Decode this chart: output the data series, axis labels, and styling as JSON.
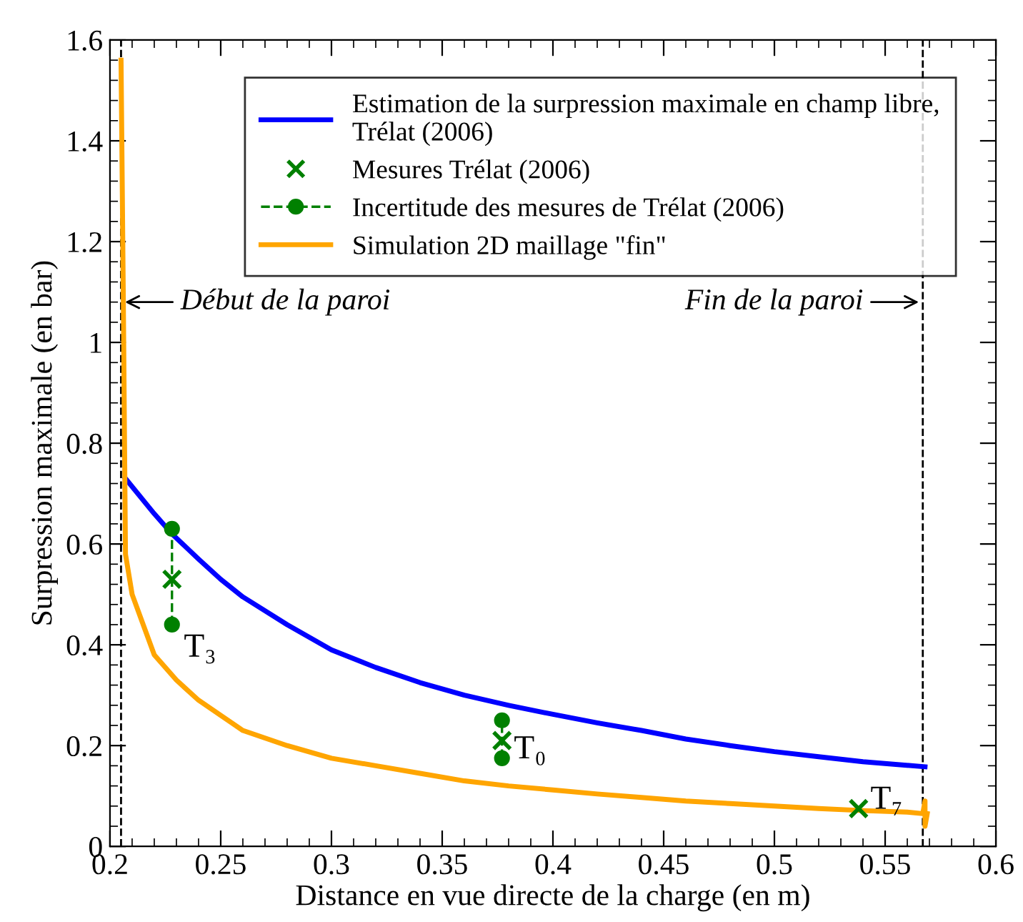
{
  "chart_data": {
    "type": "line",
    "xlabel": "Distance en vue directe de la charge (en m)",
    "ylabel": "Surpression maximale (en bar)",
    "xlim": [
      0.2,
      0.6
    ],
    "xticks": [
      0.2,
      0.25,
      0.3,
      0.35,
      0.4,
      0.45,
      0.5,
      0.55,
      0.6
    ],
    "ylim": [
      0,
      1.6
    ],
    "yticks": [
      0,
      0.2,
      0.4,
      0.6,
      0.8,
      1,
      1.2,
      1.4,
      1.6
    ],
    "grid": false,
    "legend": "top right",
    "series": [
      {
        "name": "Estimation de la surpression maximale en champ libre,\nTrélat (2006)",
        "color": "#0000ff",
        "x": [
          0.207,
          0.22,
          0.228,
          0.24,
          0.25,
          0.26,
          0.28,
          0.3,
          0.32,
          0.34,
          0.36,
          0.38,
          0.4,
          0.42,
          0.44,
          0.46,
          0.48,
          0.5,
          0.52,
          0.54,
          0.568
        ],
        "values": [
          0.73,
          0.66,
          0.62,
          0.57,
          0.53,
          0.495,
          0.44,
          0.39,
          0.355,
          0.325,
          0.3,
          0.28,
          0.262,
          0.245,
          0.23,
          0.213,
          0.2,
          0.188,
          0.178,
          0.168,
          0.158
        ]
      },
      {
        "name": "Mesures Trélat (2006)",
        "type": "scatter",
        "marker": "cross",
        "color": "#008000",
        "x": [
          0.228,
          0.377,
          0.538
        ],
        "values": [
          0.53,
          0.21,
          0.075
        ]
      },
      {
        "name": "Incertitude des mesures de Trélat (2006)",
        "marker": "circle",
        "line_style": "dashed",
        "color": "#008000",
        "x": [
          0.228,
          0.228
        ],
        "values": [
          0.44,
          0.63
        ]
      },
      {
        "marker": "circle",
        "line_style": "dashed",
        "color": "#008000",
        "x": [
          0.377,
          0.377
        ],
        "values": [
          0.175,
          0.25
        ]
      },
      {
        "name": "Simulation 2D maillage \"fin\"",
        "color": "#ffa500",
        "x": [
          0.205,
          0.206,
          0.207,
          0.21,
          0.215,
          0.22,
          0.23,
          0.24,
          0.25,
          0.26,
          0.28,
          0.3,
          0.32,
          0.34,
          0.36,
          0.38,
          0.4,
          0.42,
          0.44,
          0.46,
          0.48,
          0.5,
          0.52,
          0.54,
          0.56,
          0.567,
          0.568,
          0.568,
          0.569
        ],
        "values": [
          1.56,
          1.1,
          0.58,
          0.5,
          0.44,
          0.38,
          0.33,
          0.29,
          0.26,
          0.23,
          0.2,
          0.175,
          0.16,
          0.145,
          0.13,
          0.12,
          0.112,
          0.104,
          0.097,
          0.09,
          0.085,
          0.08,
          0.075,
          0.071,
          0.068,
          0.065,
          0.09,
          0.04,
          0.065
        ]
      }
    ],
    "ref_lines": [
      {
        "axis": "x",
        "value": 0.205,
        "label": "Début de la paroi",
        "color": "#000000",
        "line_style": "dashed"
      },
      {
        "axis": "x",
        "value": 0.567,
        "label": "Fin de la paroi",
        "color": "#000000",
        "line_style": "dashed"
      }
    ],
    "annotations": [
      {
        "text": "T₃",
        "x": 0.228,
        "y": 0.44
      },
      {
        "text": "T₀",
        "x": 0.377,
        "y": 0.175
      },
      {
        "text": "T₇",
        "x": 0.538,
        "y": 0.075
      }
    ]
  }
}
